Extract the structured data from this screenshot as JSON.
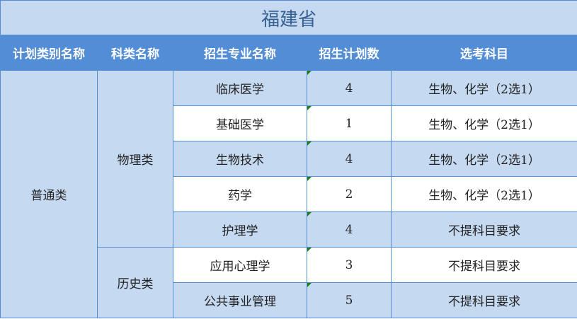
{
  "title": "福建省",
  "headers": [
    "计划类别名称",
    "科类名称",
    "招生专业名称",
    "招生计划数",
    "选考科目"
  ],
  "plan_category": "普通类",
  "subject_groups": [
    {
      "name": "物理类"
    },
    {
      "name": "历史类"
    }
  ],
  "rows": [
    {
      "major": "临床医学",
      "count": "4",
      "subjects": "生物、化学（2选1）"
    },
    {
      "major": "基础医学",
      "count": "1",
      "subjects": "生物、化学（2选1）"
    },
    {
      "major": "生物技术",
      "count": "4",
      "subjects": "生物、化学（2选1）"
    },
    {
      "major": "药学",
      "count": "2",
      "subjects": "生物、化学（2选1）"
    },
    {
      "major": "护理学",
      "count": "4",
      "subjects": "不提科目要求"
    },
    {
      "major": "应用心理学",
      "count": "3",
      "subjects": "不提科目要求"
    },
    {
      "major": "公共事业管理",
      "count": "5",
      "subjects": "不提科目要求"
    }
  ],
  "colors": {
    "header_bg": "#538DD5",
    "light_bg": "#C5D9F1",
    "border": "#558ED5",
    "title_text": "#366092"
  }
}
